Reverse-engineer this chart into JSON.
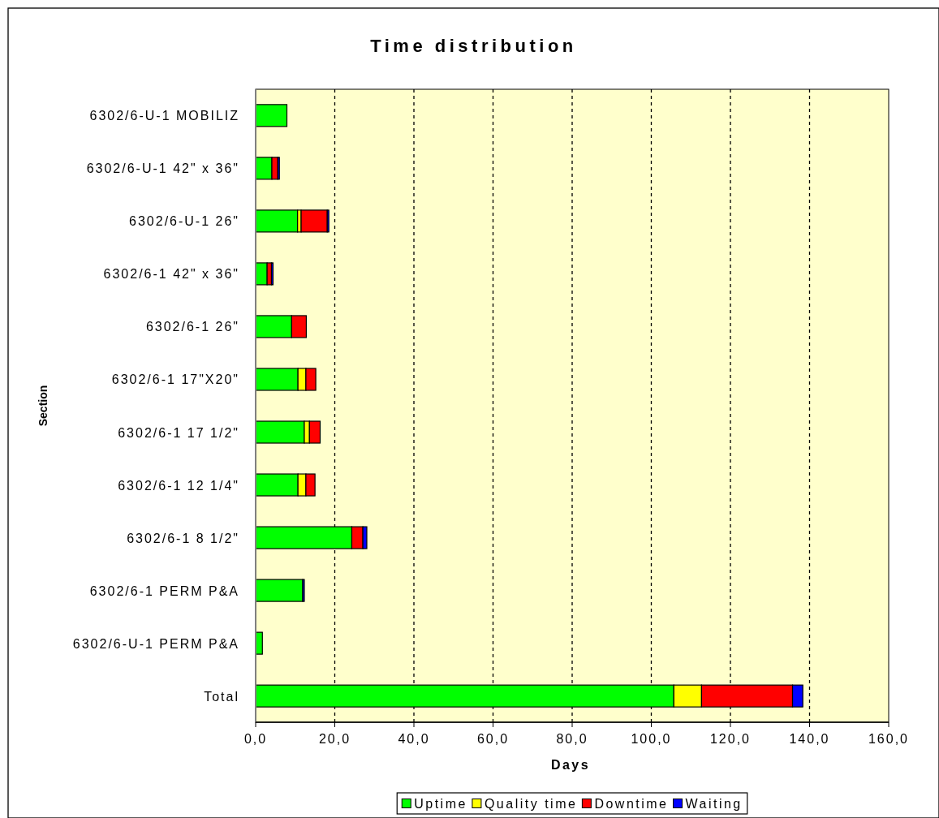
{
  "chart_data": {
    "type": "bar",
    "orientation": "horizontal",
    "stacked": true,
    "title": "Time distribution",
    "xlabel": "Days",
    "ylabel": "Section",
    "categories": [
      "6302/6-U-1 MOBILIZ",
      "6302/6-U-1 42\" x 36\"",
      "6302/6-U-1 26\"",
      "6302/6-1 42\" x 36\"",
      "6302/6-1 26\"",
      "6302/6-1 17\"X20\"",
      "6302/6-1 17 1/2\"",
      "6302/6-1 12 1/4\"",
      "6302/6-1 8 1/2\"",
      "6302/6-1 PERM P&A",
      "6302/6-U-1 PERM P&A",
      "Total"
    ],
    "series": [
      {
        "name": "Uptime",
        "color": "#00ff00",
        "values": [
          7.9,
          4.1,
          10.6,
          2.9,
          9.1,
          10.7,
          12.3,
          10.7,
          24.3,
          11.9,
          1.7,
          105.7
        ]
      },
      {
        "name": "Quality time",
        "color": "#ffff00",
        "values": [
          0,
          0,
          0.9,
          0,
          0,
          2.0,
          1.3,
          2.0,
          0,
          0,
          0,
          7.0
        ]
      },
      {
        "name": "Downtime",
        "color": "#ff0000",
        "values": [
          0,
          1.5,
          6.6,
          1.1,
          3.7,
          2.5,
          2.7,
          2.3,
          2.8,
          0,
          0,
          23.0
        ]
      },
      {
        "name": "Waiting",
        "color": "#0000ff",
        "values": [
          0,
          0.4,
          0.4,
          0.4,
          0,
          0,
          0,
          0,
          1.0,
          0.4,
          0,
          2.6
        ]
      }
    ],
    "xlim": [
      0,
      160
    ],
    "xticks": [
      {
        "value": 0,
        "label": "0,0"
      },
      {
        "value": 20,
        "label": "20,0"
      },
      {
        "value": 40,
        "label": "40,0"
      },
      {
        "value": 60,
        "label": "60,0"
      },
      {
        "value": 80,
        "label": "80,0"
      },
      {
        "value": 100,
        "label": "100,0"
      },
      {
        "value": 120,
        "label": "120,0"
      },
      {
        "value": 140,
        "label": "140,0"
      },
      {
        "value": 160,
        "label": "160,0"
      }
    ],
    "grid": "x",
    "legend": "bottom"
  }
}
